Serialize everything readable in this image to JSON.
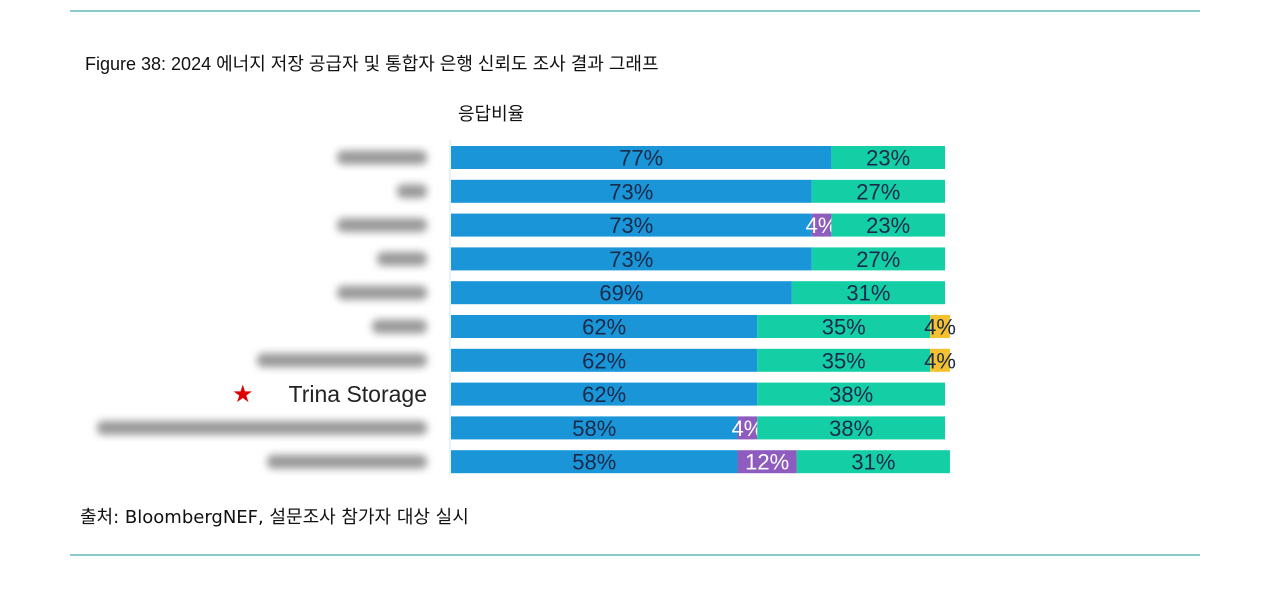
{
  "title": "Figure 38: 2024 에너지 저장 공급자 및 통합자 은행 신뢰도 조사 결과 그래프",
  "source": "출처: BloombergNEF, 설문조사 참가자 대상 실시",
  "chart_data": {
    "type": "bar",
    "orientation": "horizontal",
    "stacked": true,
    "title": "",
    "subtitle": "응답비율",
    "categories": [
      "",
      "",
      "",
      "",
      "",
      "",
      "",
      "Trina Storage",
      "",
      ""
    ],
    "highlight": {
      "category": "Trina Storage",
      "marker": "red-star-icon",
      "color": "#e00000"
    },
    "series": [
      {
        "color": "#1a96d8",
        "label_color": "#1b2a4a",
        "values": [
          77,
          73,
          73,
          73,
          69,
          62,
          62,
          62,
          58,
          58
        ]
      },
      {
        "color": "#8e5bbf",
        "label_color": "#ffffff",
        "values": [
          0,
          0,
          4,
          0,
          0,
          0,
          0,
          0,
          4,
          12
        ]
      },
      {
        "color": "#14cfa6",
        "label_color": "#1b2a4a",
        "values": [
          23,
          27,
          23,
          27,
          31,
          35,
          35,
          38,
          38,
          31
        ]
      },
      {
        "color": "#f5c12e",
        "label_color": "#1b2a4a",
        "values": [
          0,
          0,
          0,
          0,
          0,
          4,
          4,
          0,
          0,
          0
        ]
      }
    ],
    "value_format": "{v}%",
    "xlim": [
      0,
      100
    ],
    "grid": false,
    "legend": "none",
    "blurred_category_labels": true
  }
}
